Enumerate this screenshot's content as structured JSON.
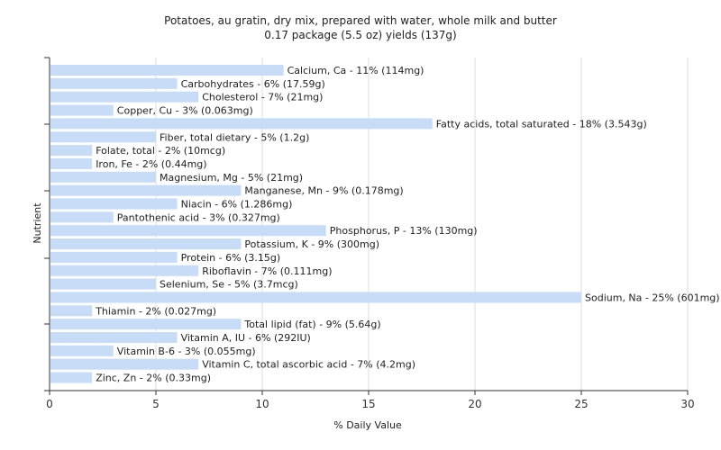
{
  "chart_data": {
    "type": "bar",
    "orientation": "horizontal",
    "title": "Potatoes, au gratin, dry mix, prepared with water, whole milk and butter",
    "subtitle": "0.17 package (5.5 oz) yields (137g)",
    "xlabel": "% Daily Value",
    "ylabel": "Nutrient",
    "xlim": [
      0,
      30
    ],
    "xticks": [
      0,
      5,
      10,
      15,
      20,
      25,
      30
    ],
    "grid": true,
    "bar_color": "#c6dcf7",
    "categories": [
      "Calcium, Ca",
      "Carbohydrates",
      "Cholesterol",
      "Copper, Cu",
      "Fatty acids, total saturated",
      "Fiber, total dietary",
      "Folate, total",
      "Iron, Fe",
      "Magnesium, Mg",
      "Manganese, Mn",
      "Niacin",
      "Pantothenic acid",
      "Phosphorus, P",
      "Potassium, K",
      "Protein",
      "Riboflavin",
      "Selenium, Se",
      "Sodium, Na",
      "Thiamin",
      "Total lipid (fat)",
      "Vitamin A, IU",
      "Vitamin B-6",
      "Vitamin C, total ascorbic acid",
      "Zinc, Zn"
    ],
    "values": [
      11,
      6,
      7,
      3,
      18,
      5,
      2,
      2,
      5,
      9,
      6,
      3,
      13,
      9,
      6,
      7,
      5,
      25,
      2,
      9,
      6,
      3,
      7,
      2
    ],
    "labels": [
      "Calcium, Ca - 11% (114mg)",
      "Carbohydrates - 6% (17.59g)",
      "Cholesterol - 7% (21mg)",
      "Copper, Cu - 3% (0.063mg)",
      "Fatty acids, total saturated - 18% (3.543g)",
      "Fiber, total dietary - 5% (1.2g)",
      "Folate, total - 2% (10mcg)",
      "Iron, Fe - 2% (0.44mg)",
      "Magnesium, Mg - 5% (21mg)",
      "Manganese, Mn - 9% (0.178mg)",
      "Niacin - 6% (1.286mg)",
      "Pantothenic acid - 3% (0.327mg)",
      "Phosphorus, P - 13% (130mg)",
      "Potassium, K - 9% (300mg)",
      "Protein - 6% (3.15g)",
      "Riboflavin - 7% (0.111mg)",
      "Selenium, Se - 5% (3.7mcg)",
      "Sodium, Na - 25% (601mg)",
      "Thiamin - 2% (0.027mg)",
      "Total lipid (fat) - 9% (5.64g)",
      "Vitamin A, IU - 6% (292IU)",
      "Vitamin B-6 - 3% (0.055mg)",
      "Vitamin C, total ascorbic acid - 7% (4.2mg)",
      "Zinc, Zn - 2% (0.33mg)"
    ]
  }
}
